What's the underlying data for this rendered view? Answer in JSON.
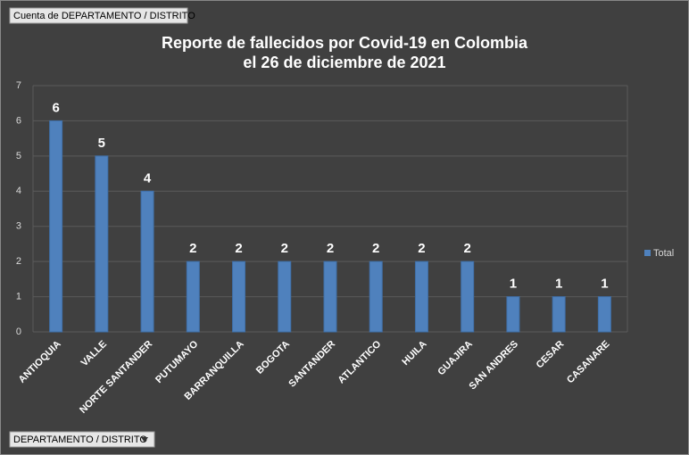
{
  "chart_data": {
    "type": "bar",
    "value_field_button": "Cuenta de DEPARTAMENTO / DISTRITO",
    "axis_field_button": "DEPARTAMENTO / DISTRITO",
    "title": [
      "Reporte de fallecidos por Covid-19 en Colombia",
      "el 26 de diciembre de 2021"
    ],
    "categories": [
      "ANTIOQUIA",
      "VALLE",
      "NORTE SANTANDER",
      "PUTUMAYO",
      "BARRANQUILLA",
      "BOGOTA",
      "SANTANDER",
      "ATLANTICO",
      "HUILA",
      "GUAJIRA",
      "SAN ANDRES",
      "CESAR",
      "CASANARE"
    ],
    "series": [
      {
        "name": "Total",
        "color": "#4f81bd",
        "values": [
          6,
          5,
          4,
          2,
          2,
          2,
          2,
          2,
          2,
          2,
          1,
          1,
          1
        ]
      }
    ],
    "ylim": [
      0,
      7
    ],
    "yticks": [
      0,
      1,
      2,
      3,
      4,
      5,
      6,
      7
    ],
    "grid": true,
    "legend": "right"
  }
}
